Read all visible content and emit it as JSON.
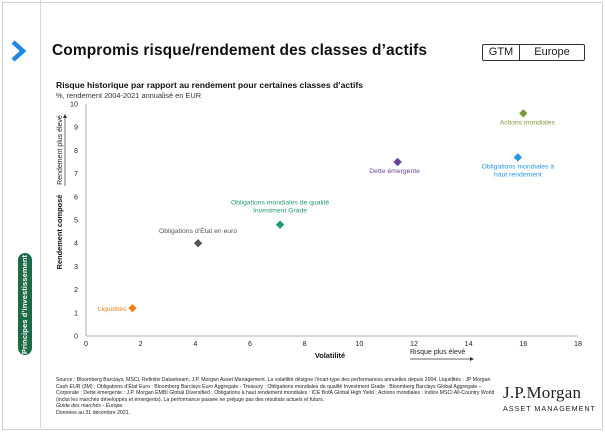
{
  "header": {
    "title": "Compromis risque/rendement des classes d’actifs",
    "badge_left": "GTM",
    "badge_right": "Europe"
  },
  "sidebar": {
    "tab_label": "Principes d’investissement"
  },
  "colors": {
    "accent_blue": "#1e88e5",
    "sidebar_green": "#1d6b46",
    "orange": "#f0821e",
    "gray": "#555555",
    "green": "#1f9c6b",
    "purple": "#6b3fa0",
    "olive": "#7a9a3a",
    "sky": "#2596e8"
  },
  "chart_data": {
    "type": "scatter",
    "title": "Risque historique par rapport au rendement pour certaines classes d’actifs",
    "subtitle": "%, rendement 2004-2021 annualisé en EUR",
    "xlabel": "Volatilité",
    "ylabel": "Rendement composé",
    "ylabel_arrow": "Rendement plus élevé",
    "xlabel_arrow": "Risque plus élevé",
    "xlim": [
      0,
      18
    ],
    "ylim": [
      0,
      10
    ],
    "x_ticks": [
      "0",
      "2",
      "4",
      "6",
      "8",
      "10",
      "12",
      "14",
      "16",
      "18"
    ],
    "y_ticks": [
      "0",
      "1",
      "2",
      "3",
      "4",
      "5",
      "6",
      "7",
      "8",
      "9",
      "10"
    ],
    "grid": false,
    "points": [
      {
        "label": "Liquidités",
        "x": 1.7,
        "y": 1.2,
        "color": "#f0821e"
      },
      {
        "label": "Obligations d’État en euro",
        "x": 4.1,
        "y": 4.0,
        "color": "#555555"
      },
      {
        "label": "Obligations mondiales de qualité Investment Grade",
        "x": 7.1,
        "y": 4.8,
        "color": "#1f9c6b"
      },
      {
        "label": "Dette émergente",
        "x": 11.4,
        "y": 7.5,
        "color": "#6b3fa0"
      },
      {
        "label": "Obligations mondiales à haut rendement",
        "x": 15.8,
        "y": 7.7,
        "color": "#2596e8"
      },
      {
        "label": "Actions mondiales",
        "x": 16.0,
        "y": 9.6,
        "color": "#7a9a3a"
      }
    ]
  },
  "footnote": {
    "text": "Source : Bloomberg Barclays, MSCI, Refinitiv Datastream, J.P. Morgan Asset Management. La volatilité désigne l’écart-type des performances annuelles depuis 2004. Liquidités : JP Morgan Cash EUR (3M) ; Obligations d’État Euro : Bloomberg Barclays Euro Aggregate - Treasury ; Obligations mondiales de qualité Investment Grade : Bloomberg Barclays Global Aggregate – Corporate ; Dette émergente : J.P. Morgan EMBI Global Diversified ; Obligations à haut rendement mondiales : ICE BofA Global High Yield ; Actions mondiales : Indice MSCI All-Country World (inclut les marchés développés et émergents). La performance passée ne préjuge pas des résultats actuels et futurs.",
    "guide": "Guide des marchés - Europe.",
    "date": "Données au 31 décembre 2021."
  },
  "logo": {
    "name": "J.P.Morgan",
    "sub": "ASSET MANAGEMENT"
  }
}
